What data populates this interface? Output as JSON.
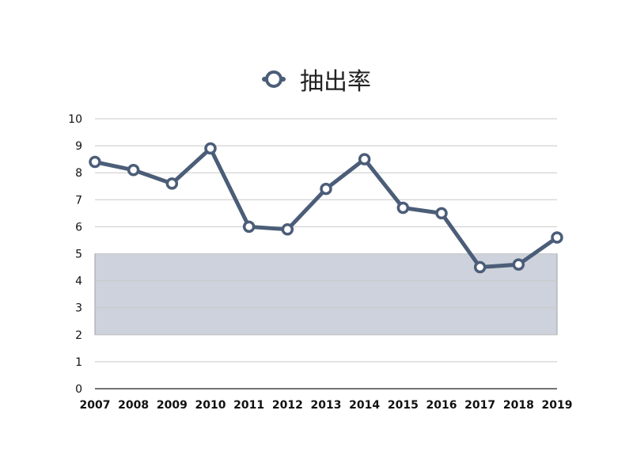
{
  "chart_data": {
    "type": "line",
    "title": "",
    "xlabel": "",
    "ylabel": "",
    "categories": [
      "2007",
      "2008",
      "2009",
      "2010",
      "2011",
      "2012",
      "2013",
      "2014",
      "2015",
      "2016",
      "2017",
      "2018",
      "2019"
    ],
    "series": [
      {
        "name": "抽出率",
        "values": [
          8.4,
          8.1,
          7.6,
          8.9,
          6.0,
          5.9,
          7.4,
          8.5,
          6.7,
          6.5,
          4.5,
          4.6,
          5.6
        ]
      }
    ],
    "ylim": [
      0,
      10
    ],
    "yticks": [
      "0",
      "1",
      "2",
      "3",
      "4",
      "5",
      "6",
      "7",
      "8",
      "9",
      "10"
    ],
    "band": {
      "from": 2,
      "to": 5
    },
    "grid": true,
    "legend_position": "top-center",
    "colors": {
      "line": "#4b5d78",
      "marker_fill": "#ffffff",
      "band": "#cdd2dc",
      "grid": "#c8c8c8",
      "axis": "#222222"
    }
  }
}
